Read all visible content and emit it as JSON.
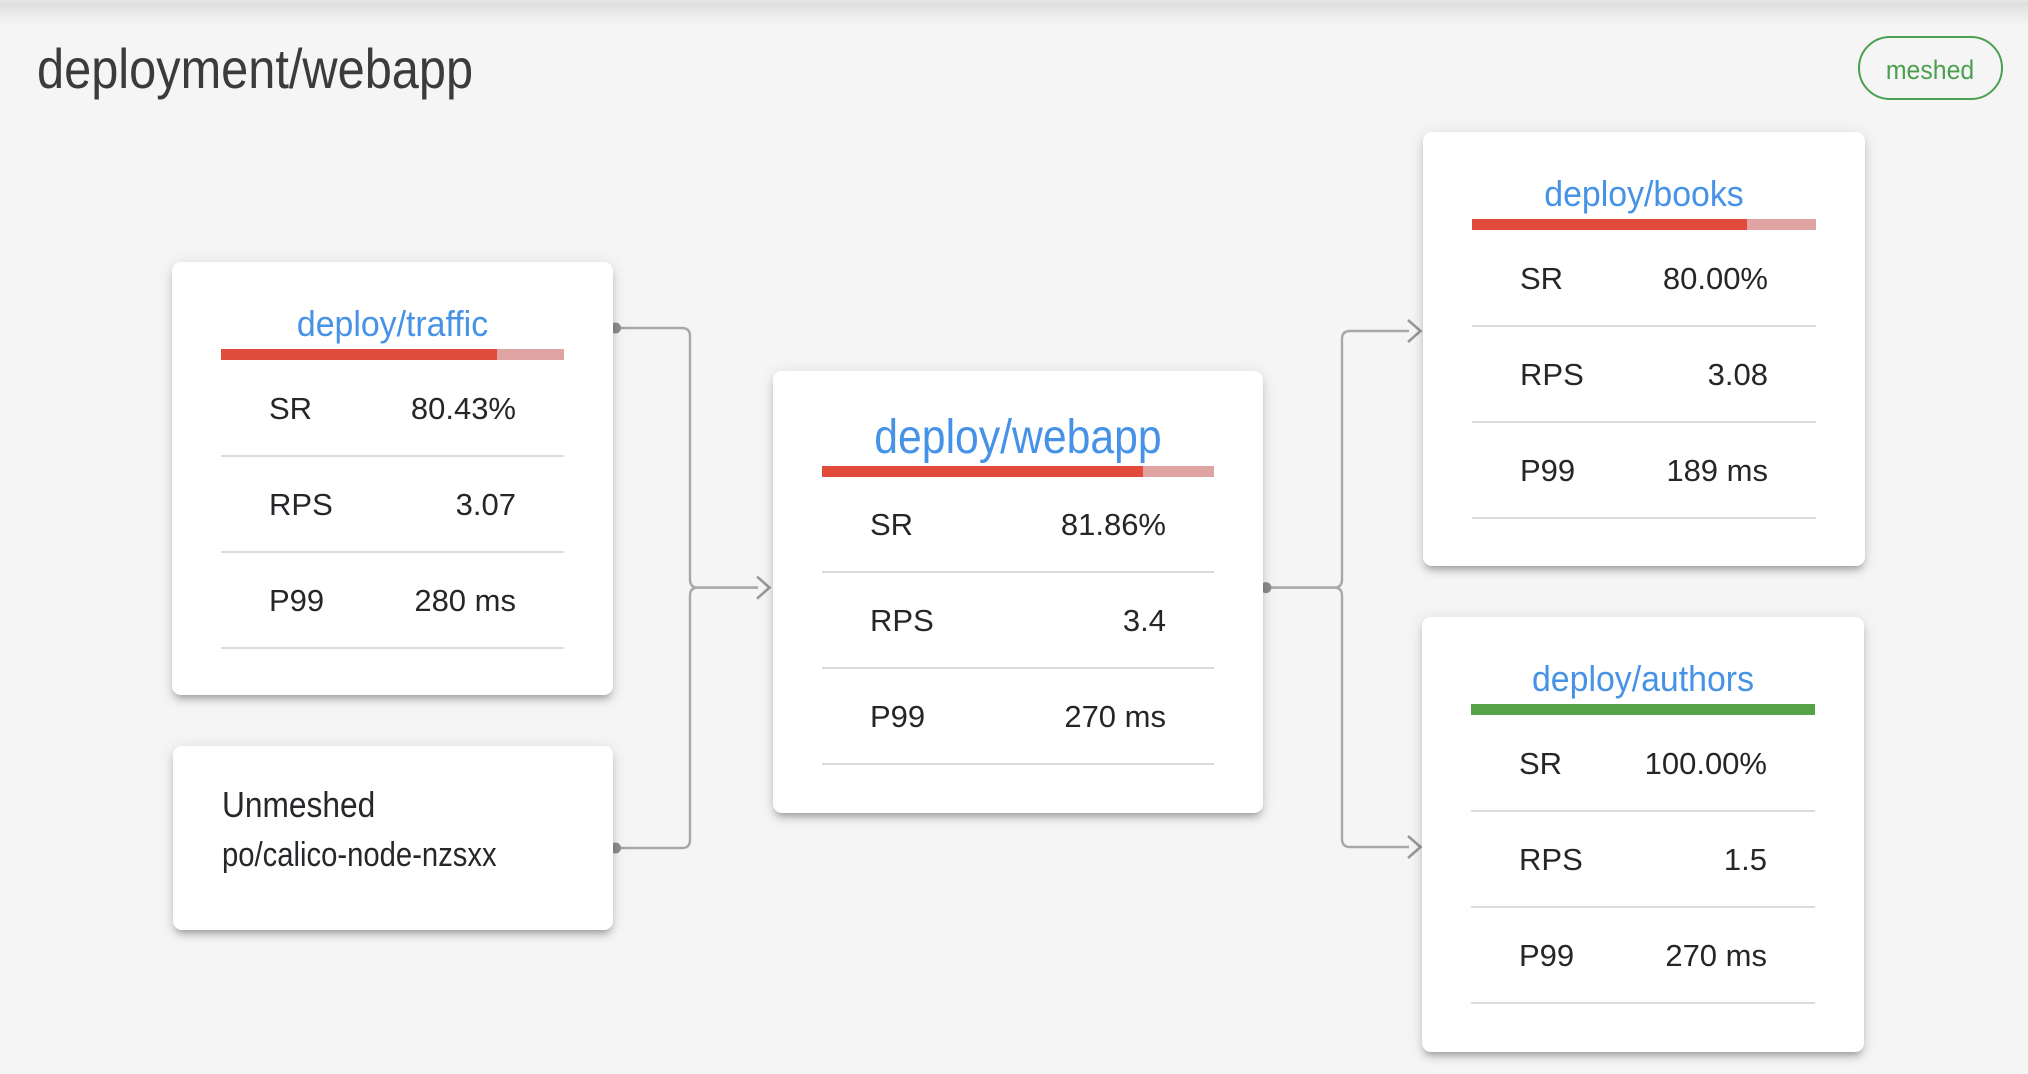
{
  "page": {
    "title": "deployment/webapp",
    "badge": "meshed"
  },
  "colors": {
    "background": "#f5f5f6",
    "card": "#ffffff",
    "node_link_blue": "#4592e6",
    "badge_green": "#4ba04f",
    "bar_red": "#e14b3c",
    "bar_red_light": "#dfa3a2",
    "bar_green": "#55a347",
    "bar_green_light": "#a8d0a0",
    "connector_grey": "#a8a8a8",
    "divider_grey": "#dcdcdc"
  },
  "nodes": {
    "traffic": {
      "title": "deploy/traffic",
      "type": "meshed",
      "success_rate_percent": 80.43,
      "bar_fill_color": "#e14b3c",
      "bar_rest_color": "#dfa3a2",
      "stats": {
        "sr": {
          "label": "SR",
          "value": "80.43%"
        },
        "rps": {
          "label": "RPS",
          "value": "3.07"
        },
        "p99": {
          "label": "P99",
          "value": "280 ms"
        }
      }
    },
    "unmeshed": {
      "title": "Unmeshed",
      "resource": "po/calico-node-nzsxx",
      "type": "unmeshed"
    },
    "webapp": {
      "title": "deploy/webapp",
      "type": "meshed",
      "is_main": true,
      "success_rate_percent": 81.86,
      "bar_fill_color": "#e14b3c",
      "bar_rest_color": "#dfa3a2",
      "stats": {
        "sr": {
          "label": "SR",
          "value": "81.86%"
        },
        "rps": {
          "label": "RPS",
          "value": "3.4"
        },
        "p99": {
          "label": "P99",
          "value": "270 ms"
        }
      }
    },
    "books": {
      "title": "deploy/books",
      "type": "meshed",
      "success_rate_percent": 80.0,
      "bar_fill_color": "#e14b3c",
      "bar_rest_color": "#dfa3a2",
      "stats": {
        "sr": {
          "label": "SR",
          "value": "80.00%"
        },
        "rps": {
          "label": "RPS",
          "value": "3.08"
        },
        "p99": {
          "label": "P99",
          "value": "189 ms"
        }
      }
    },
    "authors": {
      "title": "deploy/authors",
      "type": "meshed",
      "success_rate_percent": 100.0,
      "bar_fill_color": "#55a347",
      "bar_rest_color": "#a8d0a0",
      "stats": {
        "sr": {
          "label": "SR",
          "value": "100.00%"
        },
        "rps": {
          "label": "RPS",
          "value": "1.5"
        },
        "p99": {
          "label": "P99",
          "value": "270 ms"
        }
      }
    }
  },
  "edges": [
    {
      "from": "deploy/traffic",
      "to": "deploy/webapp"
    },
    {
      "from": "po/calico-node-nzsxx",
      "to": "deploy/webapp"
    },
    {
      "from": "deploy/webapp",
      "to": "deploy/books"
    },
    {
      "from": "deploy/webapp",
      "to": "deploy/authors"
    }
  ]
}
